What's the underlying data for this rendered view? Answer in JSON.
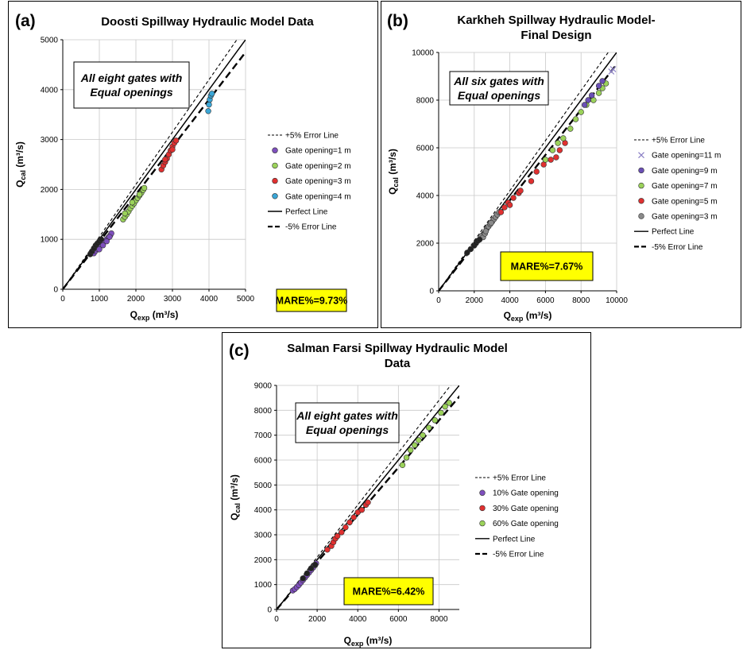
{
  "chart_data": [
    {
      "type": "scatter",
      "panel_label": "(a)",
      "title_lines": [
        "Doosti Spillway Hydraulic Model Data"
      ],
      "xlabel_main": "Q",
      "xlabel_sub": "exp",
      "xlabel_unit": " (m³/s)",
      "ylabel_main": "Q",
      "ylabel_sub": "cal",
      "ylabel_unit": " (m³/s)",
      "xlim": [
        0,
        5000
      ],
      "ylim": [
        0,
        5000
      ],
      "xticks": [
        0,
        1000,
        2000,
        3000,
        4000,
        5000
      ],
      "yticks": [
        0,
        1000,
        2000,
        3000,
        4000,
        5000
      ],
      "grid": true,
      "annotation_lines": [
        "All eight gates with",
        "Equal openings"
      ],
      "mare": "MARE%=9.73%",
      "legend_position": "right",
      "legend": [
        {
          "label": "+5% Error Line",
          "kind": "line",
          "style": "plus5"
        },
        {
          "label": "Gate opening=1 m",
          "kind": "marker",
          "color": "#7e4fbd"
        },
        {
          "label": "Gate opening=2 m",
          "kind": "marker",
          "color": "#9bd25a"
        },
        {
          "label": "Gate opening=3 m",
          "kind": "marker",
          "color": "#e03030"
        },
        {
          "label": "Gate opening=4 m",
          "kind": "marker",
          "color": "#3aa6d6"
        },
        {
          "label": "Perfect Line",
          "kind": "line",
          "style": "perfect"
        },
        {
          "label": "-5% Error Line",
          "kind": "line",
          "style": "minus5"
        }
      ],
      "series": [
        {
          "name": "Gate opening=1 m",
          "color": "#7e4fbd",
          "points": [
            [
              850,
              720
            ],
            [
              900,
              770
            ],
            [
              950,
              810
            ],
            [
              1000,
              850
            ],
            [
              1050,
              890
            ],
            [
              1100,
              930
            ],
            [
              1150,
              960
            ],
            [
              1200,
              1000
            ],
            [
              1250,
              1040
            ],
            [
              1300,
              1080
            ],
            [
              1330,
              1120
            ],
            [
              1000,
              800
            ],
            [
              1100,
              880
            ],
            [
              1200,
              960
            ],
            [
              1280,
              1050
            ]
          ]
        },
        {
          "name": "Gate opening=2 m",
          "color": "#9bd25a",
          "points": [
            [
              1650,
              1400
            ],
            [
              1700,
              1450
            ],
            [
              1750,
              1500
            ],
            [
              1800,
              1560
            ],
            [
              1850,
              1620
            ],
            [
              1900,
              1670
            ],
            [
              1950,
              1720
            ],
            [
              2000,
              1780
            ],
            [
              2050,
              1830
            ],
            [
              2100,
              1880
            ],
            [
              2150,
              1930
            ],
            [
              2200,
              1990
            ],
            [
              2230,
              2030
            ],
            [
              1700,
              1520
            ],
            [
              1900,
              1740
            ],
            [
              2100,
              1900
            ]
          ]
        },
        {
          "name": "Gate opening=3 m",
          "color": "#e03030",
          "points": [
            [
              2700,
              2400
            ],
            [
              2750,
              2480
            ],
            [
              2800,
              2550
            ],
            [
              2850,
              2620
            ],
            [
              2900,
              2700
            ],
            [
              2950,
              2780
            ],
            [
              3000,
              2860
            ],
            [
              3050,
              2930
            ],
            [
              3100,
              2980
            ],
            [
              2800,
              2600
            ],
            [
              3000,
              2800
            ]
          ]
        },
        {
          "name": "Gate opening=4 m",
          "color": "#3aa6d6",
          "points": [
            [
              3980,
              3570
            ],
            [
              4000,
              3700
            ],
            [
              4020,
              3800
            ],
            [
              4050,
              3880
            ],
            [
              4080,
              3920
            ]
          ]
        },
        {
          "name": "",
          "color": "#222222",
          "points": [
            [
              750,
              700
            ],
            [
              800,
              760
            ],
            [
              850,
              820
            ],
            [
              900,
              880
            ],
            [
              950,
              920
            ],
            [
              1000,
              960
            ],
            [
              1050,
              1000
            ]
          ]
        }
      ]
    },
    {
      "type": "scatter",
      "panel_label": "(b)",
      "title_lines": [
        "Karkheh Spillway Hydraulic Model-",
        "Final Design"
      ],
      "xlabel_main": "Q",
      "xlabel_sub": "exp",
      "xlabel_unit": " (m³/s)",
      "ylabel_main": "Q",
      "ylabel_sub": "cal",
      "ylabel_unit": " (m³/s)",
      "xlim": [
        0,
        10000
      ],
      "ylim": [
        0,
        10000
      ],
      "xticks": [
        0,
        2000,
        4000,
        6000,
        8000,
        10000
      ],
      "yticks": [
        0,
        2000,
        4000,
        6000,
        8000,
        10000
      ],
      "grid": true,
      "annotation_lines": [
        "All six gates with",
        "Equal openings"
      ],
      "mare": "MARE%=7.67%",
      "legend_position": "right",
      "legend": [
        {
          "label": "+5% Error Line",
          "kind": "line",
          "style": "plus5"
        },
        {
          "label": "Gate opening=11 m",
          "kind": "cross",
          "color": "#8a7fc4"
        },
        {
          "label": "Gate opening=9 m",
          "kind": "marker",
          "color": "#6a4fb5"
        },
        {
          "label": "Gate opening=7 m",
          "kind": "marker",
          "color": "#9bd25a"
        },
        {
          "label": "Gate opening=5 m",
          "kind": "marker",
          "color": "#e03030"
        },
        {
          "label": "Gate opening=3 m",
          "kind": "marker",
          "color": "#8a8a8a"
        },
        {
          "label": "Perfect Line",
          "kind": "line",
          "style": "perfect"
        },
        {
          "label": "-5% Error Line",
          "kind": "line",
          "style": "minus5"
        }
      ],
      "series": [
        {
          "name": "Gate opening=3 m",
          "color": "#8a8a8a",
          "points": [
            [
              2400,
              2300
            ],
            [
              2500,
              2250
            ],
            [
              2600,
              2400
            ],
            [
              2700,
              2600
            ],
            [
              2800,
              2700
            ],
            [
              2900,
              2800
            ],
            [
              3000,
              2900
            ],
            [
              3100,
              3000
            ],
            [
              3200,
              3100
            ],
            [
              3300,
              3200
            ],
            [
              3400,
              3300
            ],
            [
              2650,
              2500
            ],
            [
              2950,
              2850
            ]
          ]
        },
        {
          "name": "Gate opening=5 m",
          "color": "#e03030",
          "points": [
            [
              3500,
              3300
            ],
            [
              3700,
              3500
            ],
            [
              3900,
              3700
            ],
            [
              4200,
              3900
            ],
            [
              4500,
              4100
            ],
            [
              4600,
              4200
            ],
            [
              5200,
              4600
            ],
            [
              5500,
              5000
            ],
            [
              5900,
              5300
            ],
            [
              6300,
              5500
            ],
            [
              6600,
              5600
            ],
            [
              6800,
              5900
            ],
            [
              7100,
              6200
            ],
            [
              4000,
              3600
            ]
          ]
        },
        {
          "name": "Gate opening=7 m",
          "color": "#9bd25a",
          "points": [
            [
              6000,
              5500
            ],
            [
              6400,
              5900
            ],
            [
              6700,
              6200
            ],
            [
              7000,
              6400
            ],
            [
              7400,
              6800
            ],
            [
              7700,
              7200
            ],
            [
              8000,
              7500
            ],
            [
              8300,
              7800
            ],
            [
              8700,
              8000
            ],
            [
              9000,
              8300
            ],
            [
              9200,
              8500
            ],
            [
              9400,
              8700
            ]
          ]
        },
        {
          "name": "Gate opening=9 m",
          "color": "#6a4fb5",
          "points": [
            [
              8200,
              7800
            ],
            [
              8400,
              8000
            ],
            [
              8600,
              8200
            ],
            [
              9000,
              8600
            ],
            [
              9200,
              8800
            ]
          ]
        },
        {
          "name": "Gate opening=11 m",
          "color": "#8a7fc4",
          "marker": "cross",
          "points": [
            [
              9800,
              9300
            ],
            [
              9700,
              9200
            ]
          ]
        },
        {
          "name": "",
          "color": "#222222",
          "points": [
            [
              1600,
              1600
            ],
            [
              1800,
              1750
            ],
            [
              2000,
              1900
            ],
            [
              2100,
              2000
            ],
            [
              2200,
              2100
            ],
            [
              2300,
              2150
            ]
          ]
        }
      ]
    },
    {
      "type": "scatter",
      "panel_label": "(c)",
      "title_lines": [
        "Salman Farsi Spillway Hydraulic Model",
        "Data"
      ],
      "xlabel_main": "Q",
      "xlabel_sub": "exp",
      "xlabel_unit": " (m³/s)",
      "ylabel_main": "Q",
      "ylabel_sub": "cal",
      "ylabel_unit": " (m³/s)",
      "xlim": [
        0,
        9000
      ],
      "ylim": [
        0,
        9000
      ],
      "xticks": [
        0,
        2000,
        4000,
        6000,
        8000
      ],
      "yticks": [
        0,
        1000,
        2000,
        3000,
        4000,
        5000,
        6000,
        7000,
        8000,
        9000
      ],
      "grid": true,
      "annotation_lines": [
        "All eight gates with",
        "Equal openings"
      ],
      "mare": "MARE%=6.42%",
      "legend_position": "right",
      "legend": [
        {
          "label": "+5% Error Line",
          "kind": "line",
          "style": "plus5"
        },
        {
          "label": "10% Gate opening",
          "kind": "marker",
          "color": "#7e4fbd"
        },
        {
          "label": "30% Gate opening",
          "kind": "marker",
          "color": "#e03030"
        },
        {
          "label": "60% Gate opening",
          "kind": "marker",
          "color": "#9bd25a"
        },
        {
          "label": "Perfect Line",
          "kind": "line",
          "style": "perfect"
        },
        {
          "label": "-5% Error Line",
          "kind": "line",
          "style": "minus5"
        }
      ],
      "series": [
        {
          "name": "10% Gate opening",
          "color": "#7e4fbd",
          "points": [
            [
              800,
              760
            ],
            [
              900,
              820
            ],
            [
              1000,
              900
            ],
            [
              1100,
              980
            ],
            [
              1200,
              1080
            ],
            [
              1300,
              1180
            ],
            [
              1400,
              1280
            ],
            [
              1500,
              1380
            ],
            [
              1600,
              1480
            ],
            [
              1700,
              1580
            ],
            [
              1800,
              1680
            ],
            [
              1900,
              1780
            ],
            [
              1950,
              1850
            ]
          ]
        },
        {
          "name": "30% Gate opening",
          "color": "#e03030",
          "points": [
            [
              2500,
              2400
            ],
            [
              2700,
              2550
            ],
            [
              2800,
              2700
            ],
            [
              2900,
              2850
            ],
            [
              3000,
              2950
            ],
            [
              3200,
              3100
            ],
            [
              3400,
              3300
            ],
            [
              3600,
              3500
            ],
            [
              3800,
              3700
            ],
            [
              4000,
              3900
            ],
            [
              4200,
              4000
            ],
            [
              4400,
              4200
            ],
            [
              4500,
              4300
            ]
          ]
        },
        {
          "name": "60% Gate opening",
          "color": "#9bd25a",
          "points": [
            [
              6200,
              5800
            ],
            [
              6400,
              6100
            ],
            [
              6600,
              6400
            ],
            [
              6800,
              6600
            ],
            [
              7000,
              6800
            ],
            [
              7200,
              7000
            ],
            [
              7500,
              7300
            ],
            [
              7800,
              7600
            ],
            [
              8100,
              7900
            ],
            [
              8300,
              8150
            ],
            [
              8500,
              8300
            ]
          ]
        },
        {
          "name": "",
          "color": "#222222",
          "points": [
            [
              1300,
              1250
            ],
            [
              1500,
              1450
            ],
            [
              1700,
              1650
            ],
            [
              1900,
              1800
            ]
          ]
        }
      ]
    }
  ]
}
